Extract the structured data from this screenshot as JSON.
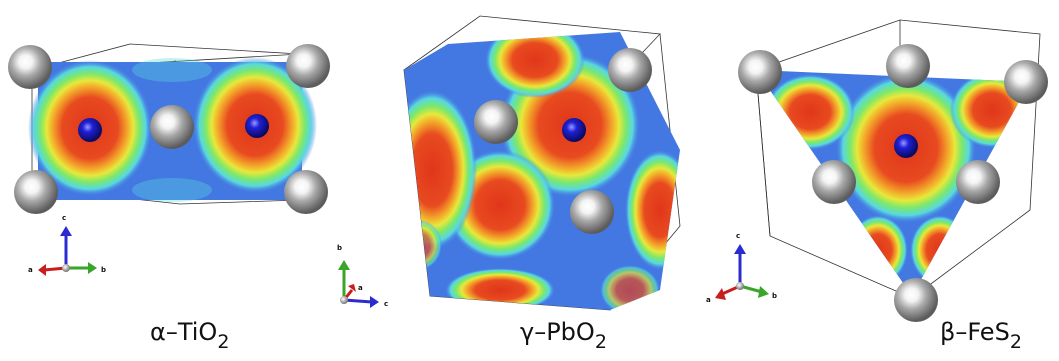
{
  "figure": {
    "panels": [
      {
        "name": "alpha-TiO2",
        "label_prefix": "α–TiO",
        "label_subscript": "2",
        "axes": {
          "x": "a",
          "y": "b",
          "z": "c"
        }
      },
      {
        "name": "gamma-PbO2",
        "label_prefix": "γ–PbO",
        "label_subscript": "2",
        "axes": {
          "x": "a",
          "y": "b",
          "z": "c"
        }
      },
      {
        "name": "beta-FeS2",
        "label_prefix": "β–FeS",
        "label_subscript": "2",
        "axes": {
          "x": "a",
          "y": "b",
          "z": "c"
        }
      }
    ],
    "colors": {
      "map_low": "#3f6fe0",
      "map_mid": "#5fe6d4",
      "map_high": "#e23a1c",
      "cation_atom": "#1a1ab8",
      "anion_atom": "#9a9a9a",
      "axis_a": "#c81e1e",
      "axis_b": "#3aa52b",
      "axis_c": "#2b2bd0"
    }
  }
}
